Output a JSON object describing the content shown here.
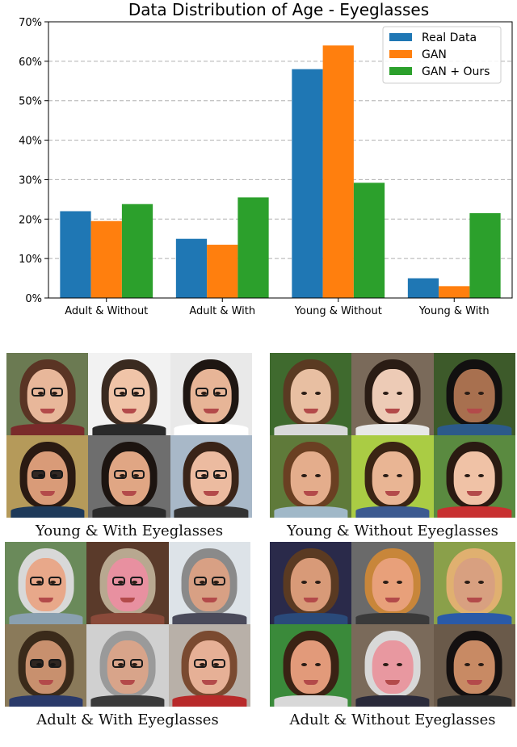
{
  "chart_data": {
    "type": "bar",
    "title": "Data Distribution of Age - Eyeglasses",
    "categories": [
      "Adult & Without",
      "Adult & With",
      "Young & Without",
      "Young & With"
    ],
    "series": [
      {
        "name": "Real Data",
        "color": "#1f77b4",
        "values": [
          22,
          15,
          58,
          5
        ]
      },
      {
        "name": "GAN",
        "color": "#ff7f0e",
        "values": [
          19.5,
          13.5,
          64,
          3
        ]
      },
      {
        "name": "GAN + Ours",
        "color": "#2ca02c",
        "values": [
          23.8,
          25.5,
          29.2,
          21.5
        ]
      }
    ],
    "yticks": [
      "0%",
      "10%",
      "20%",
      "30%",
      "40%",
      "50%",
      "60%",
      "70%"
    ],
    "ylim": [
      0,
      70
    ],
    "grid": "horizontal dashed",
    "legend_position": "top-right",
    "xlabel": "",
    "ylabel": ""
  },
  "panels": [
    {
      "caption": "Young & With Eyeglasses",
      "faces": [
        {
          "bg": "#6b7a52",
          "skin": "#e8b79a",
          "hair": "#5a3424",
          "glasses": "normal",
          "shirt": "#7a2b2b"
        },
        {
          "bg": "#f2f2f2",
          "skin": "#f0c4a8",
          "hair": "#3a2a20",
          "glasses": "normal",
          "shirt": "#2a2a2a"
        },
        {
          "bg": "#e9e9e9",
          "skin": "#e7b597",
          "hair": "#1e1612",
          "glasses": "normal",
          "shirt": "#ffffff"
        },
        {
          "bg": "#b59a5a",
          "skin": "#d99b78",
          "hair": "#2a1a12",
          "glasses": "dark",
          "shirt": "#1e3a5a"
        },
        {
          "bg": "#6e6e6e",
          "skin": "#e0a684",
          "hair": "#1c1410",
          "glasses": "normal",
          "shirt": "#2b2b2b"
        },
        {
          "bg": "#a8b8c8",
          "skin": "#ecbba0",
          "hair": "#3a2418",
          "glasses": "normal",
          "shirt": "#333333"
        }
      ]
    },
    {
      "caption": "Young & Without Eyeglasses",
      "faces": [
        {
          "bg": "#3f6a2e",
          "skin": "#e8bfa2",
          "hair": "#5a3a22",
          "glasses": "none",
          "shirt": "#d9d9d9"
        },
        {
          "bg": "#7a6a5a",
          "skin": "#edcbb6",
          "hair": "#2a1c14",
          "glasses": "none",
          "shirt": "#e8e8e8"
        },
        {
          "bg": "#3d5a2a",
          "skin": "#a8704f",
          "hair": "#121010",
          "glasses": "none",
          "shirt": "#2c5a8a"
        },
        {
          "bg": "#5f7a3a",
          "skin": "#e4ad8c",
          "hair": "#6a3f22",
          "glasses": "none",
          "shirt": "#a0b8c8"
        },
        {
          "bg": "#aacc44",
          "skin": "#e9b594",
          "hair": "#3a2414",
          "glasses": "none",
          "shirt": "#3c5a90"
        },
        {
          "bg": "#5a8a40",
          "skin": "#f0c2a6",
          "hair": "#2a1a12",
          "glasses": "none",
          "shirt": "#c83030"
        }
      ]
    },
    {
      "caption": "Adult & With Eyeglasses",
      "faces": [
        {
          "bg": "#6a8a5a",
          "skin": "#e8a88a",
          "hair": "#d8d8d8",
          "glasses": "normal",
          "shirt": "#8aa0b0"
        },
        {
          "bg": "#5a3a2a",
          "skin": "#e890a0",
          "hair": "#b8a890",
          "glasses": "normal",
          "shirt": "#8a4a3a"
        },
        {
          "bg": "#dde3e8",
          "skin": "#d8a084",
          "hair": "#8a8a8a",
          "glasses": "normal",
          "shirt": "#4a4a5a"
        },
        {
          "bg": "#8a7a5a",
          "skin": "#c8906e",
          "hair": "#3a2a1a",
          "glasses": "dark",
          "shirt": "#2a3a6a"
        },
        {
          "bg": "#d0d0d0",
          "skin": "#d8a48a",
          "hair": "#9a9a9a",
          "glasses": "normal",
          "shirt": "#3a3a3a"
        },
        {
          "bg": "#b8b0a8",
          "skin": "#e6b096",
          "hair": "#7a4a30",
          "glasses": "normal",
          "shirt": "#b82a2a"
        }
      ]
    },
    {
      "caption": "Adult & Without Eyeglasses",
      "faces": [
        {
          "bg": "#2a2a4a",
          "skin": "#d89a78",
          "hair": "#5a3a22",
          "glasses": "none",
          "shirt": "#2a4a7a"
        },
        {
          "bg": "#6a6a6a",
          "skin": "#e8a07a",
          "hair": "#c8863a",
          "glasses": "none",
          "shirt": "#3a3a3a"
        },
        {
          "bg": "#8aa04a",
          "skin": "#d8a080",
          "hair": "#e0b070",
          "glasses": "none",
          "shirt": "#2a5aa8"
        },
        {
          "bg": "#3a8a3a",
          "skin": "#e29a7a",
          "hair": "#3a2214",
          "glasses": "none",
          "shirt": "#d8d8d8"
        },
        {
          "bg": "#7a6a5a",
          "skin": "#e898a0",
          "hair": "#d8d8d8",
          "glasses": "none",
          "shirt": "#2a2a3a"
        },
        {
          "bg": "#6a5a4a",
          "skin": "#c88a64",
          "hair": "#141010",
          "glasses": "none",
          "shirt": "#2a2a2a"
        }
      ]
    }
  ]
}
